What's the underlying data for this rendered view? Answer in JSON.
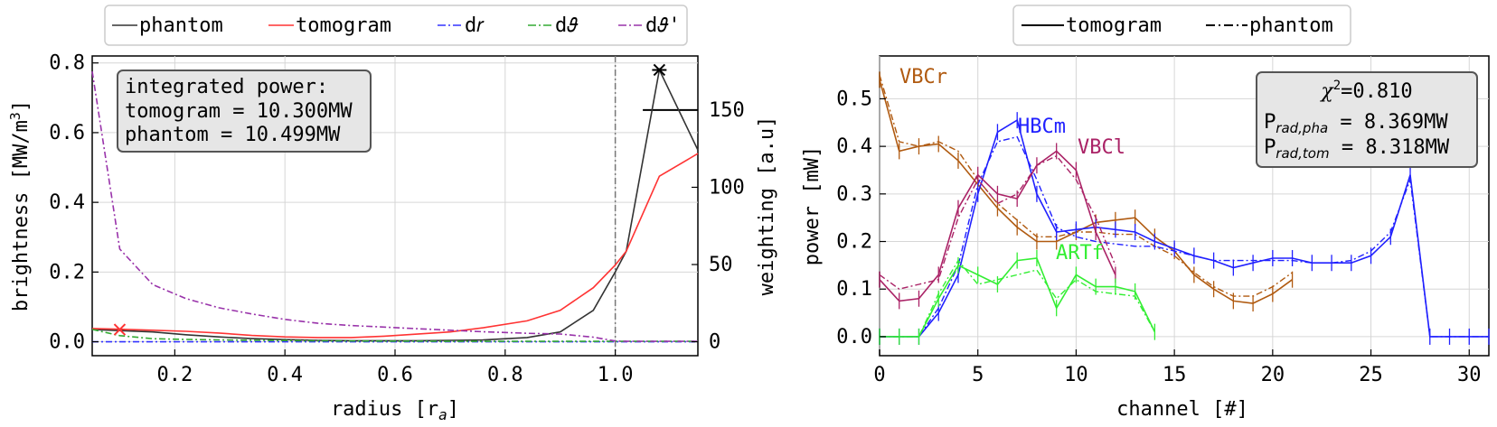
{
  "left_panel": {
    "legend": [
      "phantom",
      "tomogram",
      "d𝑟",
      "d𝜗",
      "d𝜗'"
    ],
    "xlabel": "radius [r",
    "xlabel_sub": "a",
    "xlabel_end": "]",
    "ylabel": "brightness [MW/m",
    "ylabel_sup": "3",
    "ylabel_end": "]",
    "y2label": "weighting [a.u]",
    "info_box": [
      "integrated power:",
      "tomogram = 10.300MW",
      "phantom = 10.499MW"
    ]
  },
  "right_panel": {
    "legend": [
      "tomogram",
      "phantom"
    ],
    "xlabel": "channel [#]",
    "ylabel": "power [mW]",
    "camera_labels": [
      "VBCr",
      "HBCm",
      "VBCl",
      "ARTf"
    ],
    "chi_box": {
      "chi_prefix": "χ",
      "chi_sup": "2",
      "chi_value": "=0.810",
      "pha_main": "P",
      "pha_sub": "rad,pha",
      "pha_value": " = 8.369MW",
      "tom_main": "P",
      "tom_sub": "rad,tom",
      "tom_value": " = 8.318MW"
    }
  },
  "colors": {
    "phantom": "#333333",
    "tomogram": "#ff3333",
    "dr": "#3333ff",
    "dtheta": "#33aa33",
    "dtheta_prime": "#9933aa",
    "VBCr": "#b05a10",
    "HBCm": "#2020ff",
    "VBCl": "#aa2266",
    "ARTf": "#33ee33"
  },
  "chart_data": [
    {
      "type": "line",
      "xlim": [
        0.05,
        1.15
      ],
      "ylim": [
        -0.04,
        0.82
      ],
      "y2lim": [
        -9,
        185
      ],
      "xticks": [
        0.2,
        0.4,
        0.6,
        0.8,
        1.0
      ],
      "yticks": [
        0.0,
        0.2,
        0.4,
        0.6,
        0.8
      ],
      "y2ticks": [
        0,
        50,
        100,
        150
      ],
      "grid": true,
      "legend_position": "above",
      "vline_x": 1.0,
      "x": [
        0.05,
        0.1,
        0.16,
        0.22,
        0.28,
        0.34,
        0.4,
        0.46,
        0.52,
        0.58,
        0.64,
        0.7,
        0.76,
        0.84,
        0.9,
        0.96,
        1.0,
        1.02,
        1.08,
        1.15
      ],
      "series": [
        {
          "name": "phantom",
          "axis": "left",
          "values": [
            0.035,
            0.032,
            0.028,
            0.02,
            0.014,
            0.009,
            0.006,
            0.004,
            0.003,
            0.003,
            0.003,
            0.004,
            0.005,
            0.012,
            0.028,
            0.09,
            0.2,
            0.26,
            0.78,
            0.55
          ]
        },
        {
          "name": "tomogram",
          "axis": "left",
          "values": [
            0.038,
            0.036,
            0.033,
            0.03,
            0.025,
            0.018,
            0.014,
            0.012,
            0.012,
            0.016,
            0.022,
            0.028,
            0.04,
            0.06,
            0.09,
            0.155,
            0.22,
            0.26,
            0.475,
            0.54
          ]
        },
        {
          "name": "dr",
          "axis": "right",
          "values": [
            0,
            0,
            0,
            0,
            0,
            0,
            0,
            0,
            0,
            0,
            0,
            0,
            0,
            0,
            0,
            0,
            0,
            0,
            0,
            0
          ]
        },
        {
          "name": "dθ",
          "axis": "right",
          "values": [
            8,
            4,
            2,
            1.5,
            1.2,
            1,
            0.8,
            0.6,
            0.5,
            0.4,
            0.4,
            0.3,
            0.3,
            0.3,
            0.3,
            0.3,
            0.3,
            0.3,
            0.3,
            0.3
          ]
        },
        {
          "name": "dθ'",
          "axis": "right",
          "values": [
            175,
            60,
            37,
            28,
            22,
            18,
            14.5,
            12,
            10.5,
            9.5,
            8.5,
            7.5,
            6.5,
            5.5,
            5,
            3,
            0.5,
            0.3,
            0.3,
            0.3
          ]
        }
      ],
      "markers": [
        {
          "x": 0.1,
          "y": 0.035,
          "series": "tomogram",
          "marker": "x"
        },
        {
          "x": 1.08,
          "y": 0.78,
          "series": "phantom",
          "marker": "x"
        }
      ],
      "hline": {
        "axis": "right",
        "y": 150,
        "x_from": 1.05,
        "x_to": 1.15
      }
    },
    {
      "type": "line",
      "xlim": [
        0,
        31
      ],
      "ylim": [
        -0.04,
        0.59
      ],
      "xticks": [
        0,
        5,
        10,
        15,
        20,
        25,
        30
      ],
      "yticks": [
        0.0,
        0.1,
        0.2,
        0.3,
        0.4,
        0.5
      ],
      "grid": true,
      "legend_position": "above",
      "series": [
        {
          "name": "VBCr",
          "x": [
            0,
            1,
            2,
            3,
            4,
            5,
            6,
            7,
            8,
            9,
            10,
            11,
            12,
            13,
            14,
            15,
            16,
            17,
            18,
            19,
            20,
            21
          ],
          "tomogram": [
            0.54,
            0.39,
            0.4,
            0.405,
            0.37,
            0.32,
            0.27,
            0.23,
            0.2,
            0.2,
            0.22,
            0.24,
            0.245,
            0.25,
            0.21,
            0.18,
            0.13,
            0.1,
            0.075,
            0.07,
            0.09,
            0.12
          ],
          "phantom": [
            0.55,
            0.41,
            0.4,
            0.41,
            0.39,
            0.33,
            0.28,
            0.245,
            0.21,
            0.21,
            0.22,
            0.22,
            0.215,
            0.215,
            0.19,
            0.17,
            0.135,
            0.105,
            0.085,
            0.085,
            0.105,
            0.135
          ]
        },
        {
          "name": "HBCm",
          "x": [
            0,
            1,
            2,
            3,
            4,
            5,
            6,
            7,
            8,
            9,
            10,
            11,
            12,
            13,
            14,
            15,
            16,
            17,
            18,
            19,
            20,
            21,
            22,
            23,
            24,
            25,
            26,
            27,
            28,
            29,
            30,
            31
          ],
          "tomogram": [
            0.0,
            0.0,
            0.0,
            0.05,
            0.13,
            0.3,
            0.43,
            0.455,
            0.3,
            0.22,
            0.225,
            0.23,
            0.225,
            0.22,
            0.2,
            0.185,
            0.17,
            0.16,
            0.145,
            0.155,
            0.165,
            0.165,
            0.155,
            0.155,
            0.155,
            0.17,
            0.21,
            0.34,
            0.0,
            0.0,
            0.0,
            0.0
          ],
          "phantom": [
            0.0,
            0.0,
            0.0,
            0.06,
            0.15,
            0.32,
            0.41,
            0.42,
            0.33,
            0.23,
            0.21,
            0.2,
            0.195,
            0.19,
            0.19,
            0.18,
            0.17,
            0.16,
            0.16,
            0.16,
            0.16,
            0.16,
            0.155,
            0.155,
            0.16,
            0.18,
            0.22,
            0.33,
            0.0,
            0.0,
            0.0,
            0.0
          ]
        },
        {
          "name": "VBCl",
          "x": [
            0,
            1,
            2,
            3,
            4,
            5,
            6,
            7,
            8,
            9,
            10,
            11,
            12
          ],
          "tomogram": [
            0.12,
            0.075,
            0.08,
            0.13,
            0.27,
            0.34,
            0.3,
            0.29,
            0.36,
            0.39,
            0.35,
            0.22,
            0.13
          ],
          "phantom": [
            0.13,
            0.1,
            0.11,
            0.12,
            0.25,
            0.33,
            0.28,
            0.3,
            0.36,
            0.38,
            0.33,
            0.25,
            0.15
          ]
        },
        {
          "name": "ARTf",
          "x": [
            0,
            1,
            2,
            3,
            4,
            5,
            6,
            7,
            8,
            9,
            10,
            11,
            12,
            13,
            14
          ],
          "tomogram": [
            0.0,
            0.0,
            0.0,
            0.08,
            0.15,
            0.13,
            0.11,
            0.16,
            0.165,
            0.06,
            0.13,
            0.105,
            0.105,
            0.095,
            0.01
          ],
          "phantom": [
            0.0,
            0.0,
            0.0,
            0.09,
            0.16,
            0.11,
            0.12,
            0.13,
            0.14,
            0.08,
            0.12,
            0.095,
            0.09,
            0.085,
            0.01
          ]
        }
      ]
    }
  ]
}
